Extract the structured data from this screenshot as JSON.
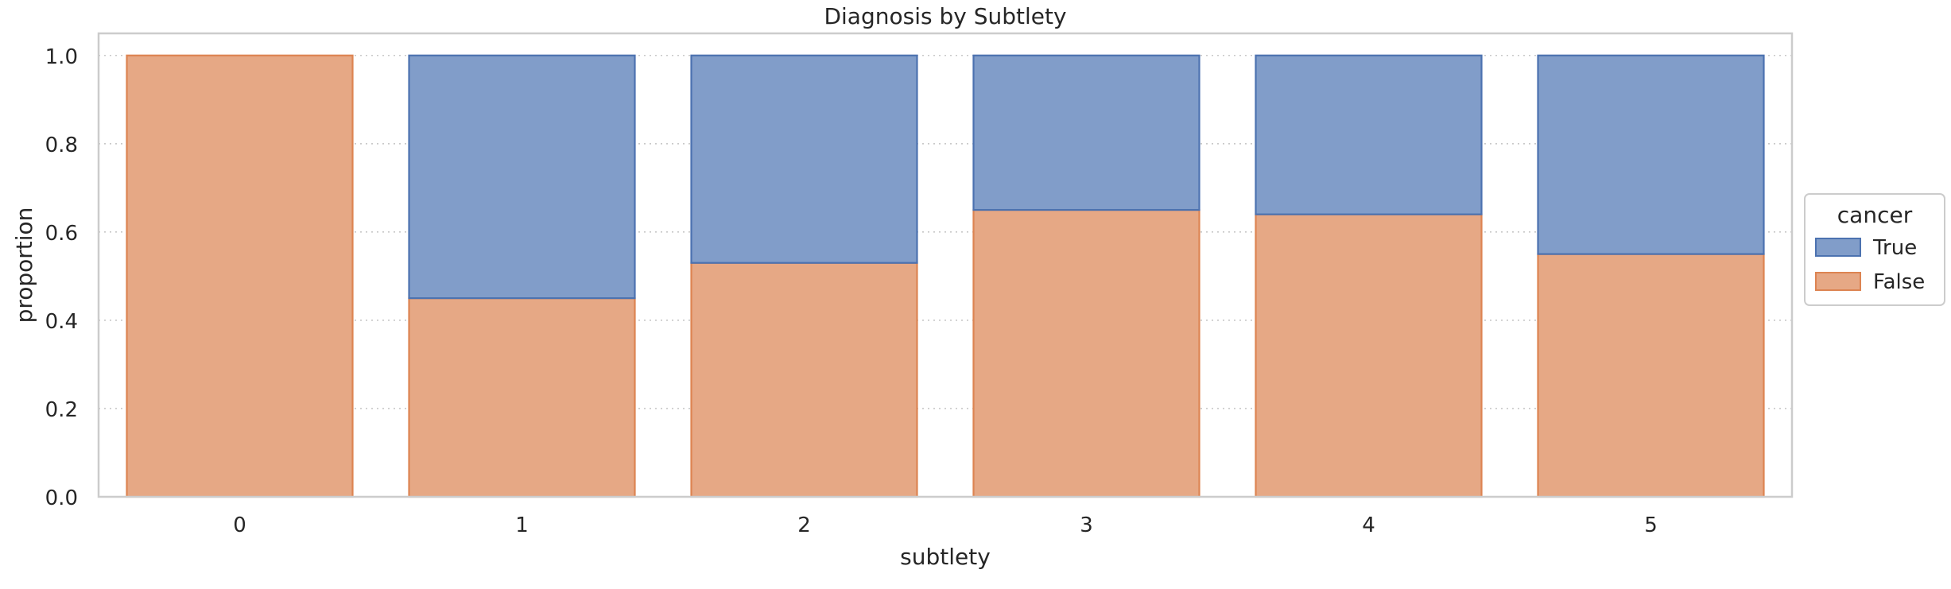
{
  "chart_data": {
    "type": "bar",
    "stacked": true,
    "title": "Diagnosis by Subtlety",
    "xlabel": "subtlety",
    "ylabel": "proportion",
    "categories": [
      "0",
      "1",
      "2",
      "3",
      "4",
      "5"
    ],
    "ylim": [
      0,
      1.05
    ],
    "yticks": [
      "0.0",
      "0.2",
      "0.4",
      "0.6",
      "0.8",
      "1.0"
    ],
    "grid": "horizontal dotted",
    "legend": {
      "title": "cancer",
      "placement": "right"
    },
    "series": [
      {
        "name": "False",
        "values": [
          1.0,
          0.45,
          0.53,
          0.65,
          0.64,
          0.55
        ],
        "fill": "#e6a885",
        "edge": "#dd8452"
      },
      {
        "name": "True",
        "values": [
          0.0,
          0.55,
          0.47,
          0.35,
          0.36,
          0.45
        ],
        "fill": "#819dc9",
        "edge": "#4c72b0"
      }
    ],
    "legend_order": [
      "True",
      "False"
    ]
  }
}
